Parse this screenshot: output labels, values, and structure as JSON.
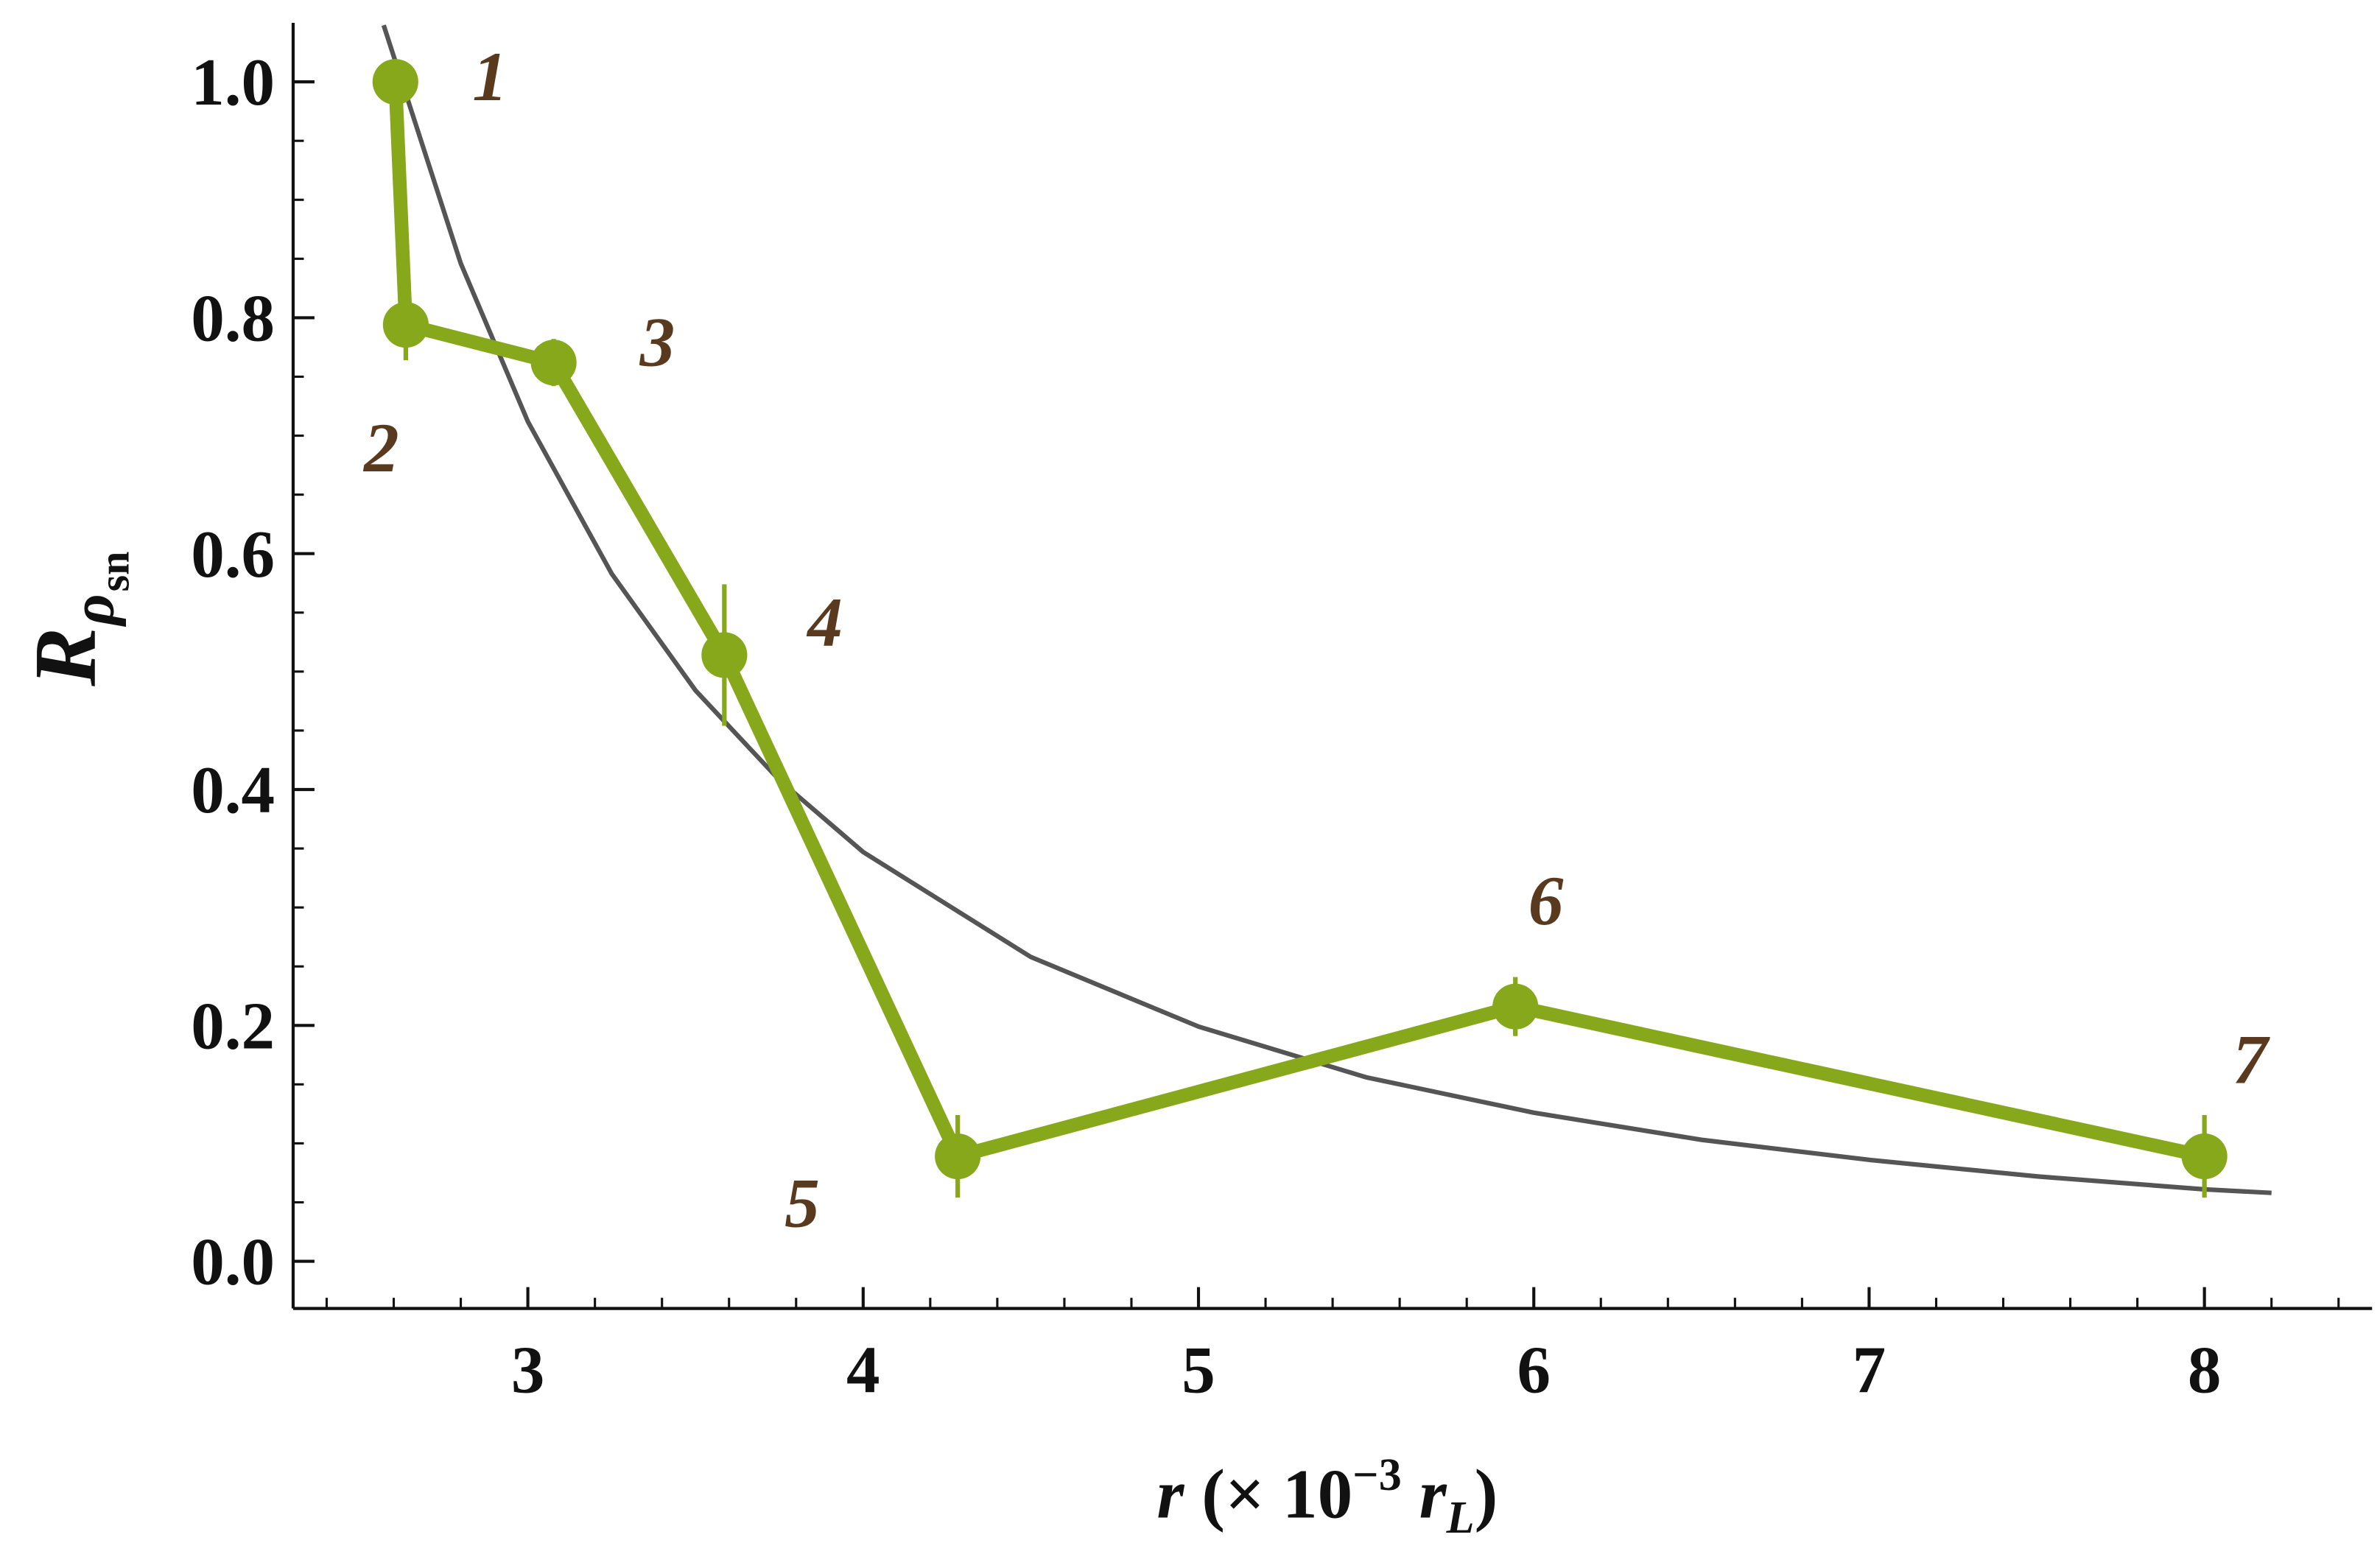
{
  "chart_data": {
    "type": "line",
    "xlabel": [
      "r",
      " (× 10",
      "−3",
      " r",
      "L",
      ")"
    ],
    "ylabel": {
      "base": "R",
      "sub": "ρ",
      "subsub": "sn"
    },
    "x": [
      2.605,
      2.636,
      3.077,
      3.586,
      4.282,
      5.945,
      8.0
    ],
    "series": [
      {
        "color": "#86a81a",
        "values": [
          1.0,
          0.794,
          0.762,
          0.514,
          0.089,
          0.216,
          0.089
        ],
        "errors": [
          0.01,
          0.03,
          0.02,
          0.06,
          0.035,
          0.025,
          0.035
        ]
      }
    ],
    "point_labels": [
      "1",
      "2",
      "3",
      "4",
      "5",
      "6",
      "7"
    ],
    "curve": {
      "color": "#555555",
      "x": [
        2.57,
        2.8,
        3.0,
        3.25,
        3.5,
        3.75,
        4.0,
        4.5,
        5.0,
        5.5,
        6.0,
        6.5,
        7.0,
        7.5,
        8.0,
        8.2
      ],
      "values": [
        1.048,
        0.846,
        0.712,
        0.583,
        0.484,
        0.408,
        0.347,
        0.258,
        0.199,
        0.156,
        0.126,
        0.103,
        0.086,
        0.072,
        0.061,
        0.058
      ]
    },
    "xlim": [
      2.3,
      8.5
    ],
    "ylim": [
      -0.04,
      1.05
    ],
    "xticks": [
      3,
      4,
      5,
      6,
      7,
      8
    ],
    "yticks": [
      {
        "value": 0,
        "label": "0.0"
      },
      {
        "value": 0.2,
        "label": "0.2"
      },
      {
        "value": 0.4,
        "label": "0.4"
      },
      {
        "value": 0.6,
        "label": "0.6"
      },
      {
        "value": 0.8,
        "label": "0.8"
      },
      {
        "value": 1,
        "label": "1.0"
      }
    ],
    "xminorticks": [
      2.4,
      2.6,
      2.8,
      3.2,
      3.4,
      3.6,
      3.8,
      4.2,
      4.4,
      4.6,
      4.8,
      5.2,
      5.4,
      5.6,
      5.8,
      6.2,
      6.4,
      6.6,
      6.8,
      7.2,
      7.4,
      7.6,
      7.8,
      8.2,
      8.4
    ],
    "yminorticks": [
      0.05,
      0.1,
      0.15,
      0.25,
      0.3,
      0.35,
      0.45,
      0.5,
      0.55,
      0.65,
      0.7,
      0.75,
      0.85,
      0.9,
      0.95
    ]
  }
}
